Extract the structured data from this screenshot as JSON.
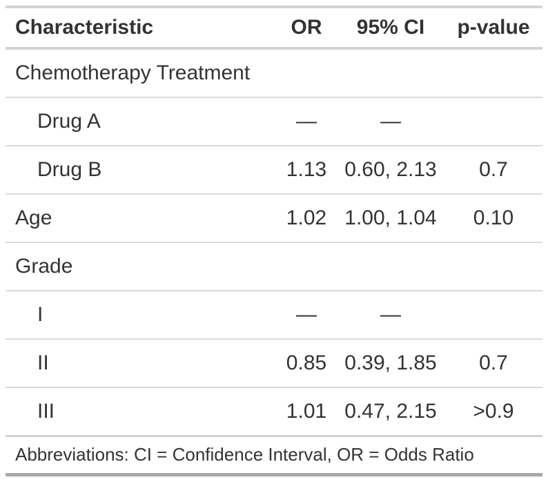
{
  "table": {
    "columns": [
      "Characteristic",
      "OR",
      "95% CI",
      "p-value"
    ],
    "rows": [
      {
        "label": "Chemotherapy Treatment",
        "or": "",
        "ci": "",
        "p": ""
      },
      {
        "label": "Drug A",
        "or": "—",
        "ci": "—",
        "p": ""
      },
      {
        "label": "Drug B",
        "or": "1.13",
        "ci": "0.60, 2.13",
        "p": "0.7"
      },
      {
        "label": "Age",
        "or": "1.02",
        "ci": "1.00, 1.04",
        "p": "0.10"
      },
      {
        "label": "Grade",
        "or": "",
        "ci": "",
        "p": ""
      },
      {
        "label": "I",
        "or": "—",
        "ci": "—",
        "p": ""
      },
      {
        "label": "II",
        "or": "0.85",
        "ci": "0.39, 1.85",
        "p": "0.7"
      },
      {
        "label": "III",
        "or": "1.01",
        "ci": "0.47, 2.15",
        "p": ">0.9"
      }
    ],
    "footnote": "Abbreviations: CI = Confidence Interval, OR = Odds Ratio"
  },
  "colors": {
    "text": "#333333",
    "background": "#FFFFFF",
    "rule_light": "#D3D3D3",
    "row_divider": "#DBDBDB",
    "rule_bottom_dark": "#A8A8A8"
  },
  "chart_data": {
    "type": "table",
    "title": "",
    "columns": [
      "Characteristic",
      "OR",
      "95% CI",
      "p-value"
    ],
    "rows": [
      [
        "Chemotherapy Treatment",
        "",
        "",
        ""
      ],
      [
        "Drug A",
        "—",
        "—",
        ""
      ],
      [
        "Drug B",
        "1.13",
        "0.60, 2.13",
        "0.7"
      ],
      [
        "Age",
        "1.02",
        "1.00, 1.04",
        "0.10"
      ],
      [
        "Grade",
        "",
        "",
        ""
      ],
      [
        "I",
        "—",
        "—",
        ""
      ],
      [
        "II",
        "0.85",
        "0.39, 1.85",
        "0.7"
      ],
      [
        "III",
        "1.01",
        "0.47, 2.15",
        ">0.9"
      ]
    ],
    "indented_row_indices": [
      1,
      2,
      5,
      6,
      7
    ],
    "group_header_row_indices": [
      0,
      4
    ],
    "footnote": "Abbreviations: CI = Confidence Interval, OR = Odds Ratio",
    "column_alignment": [
      "left",
      "center",
      "center",
      "center"
    ]
  }
}
